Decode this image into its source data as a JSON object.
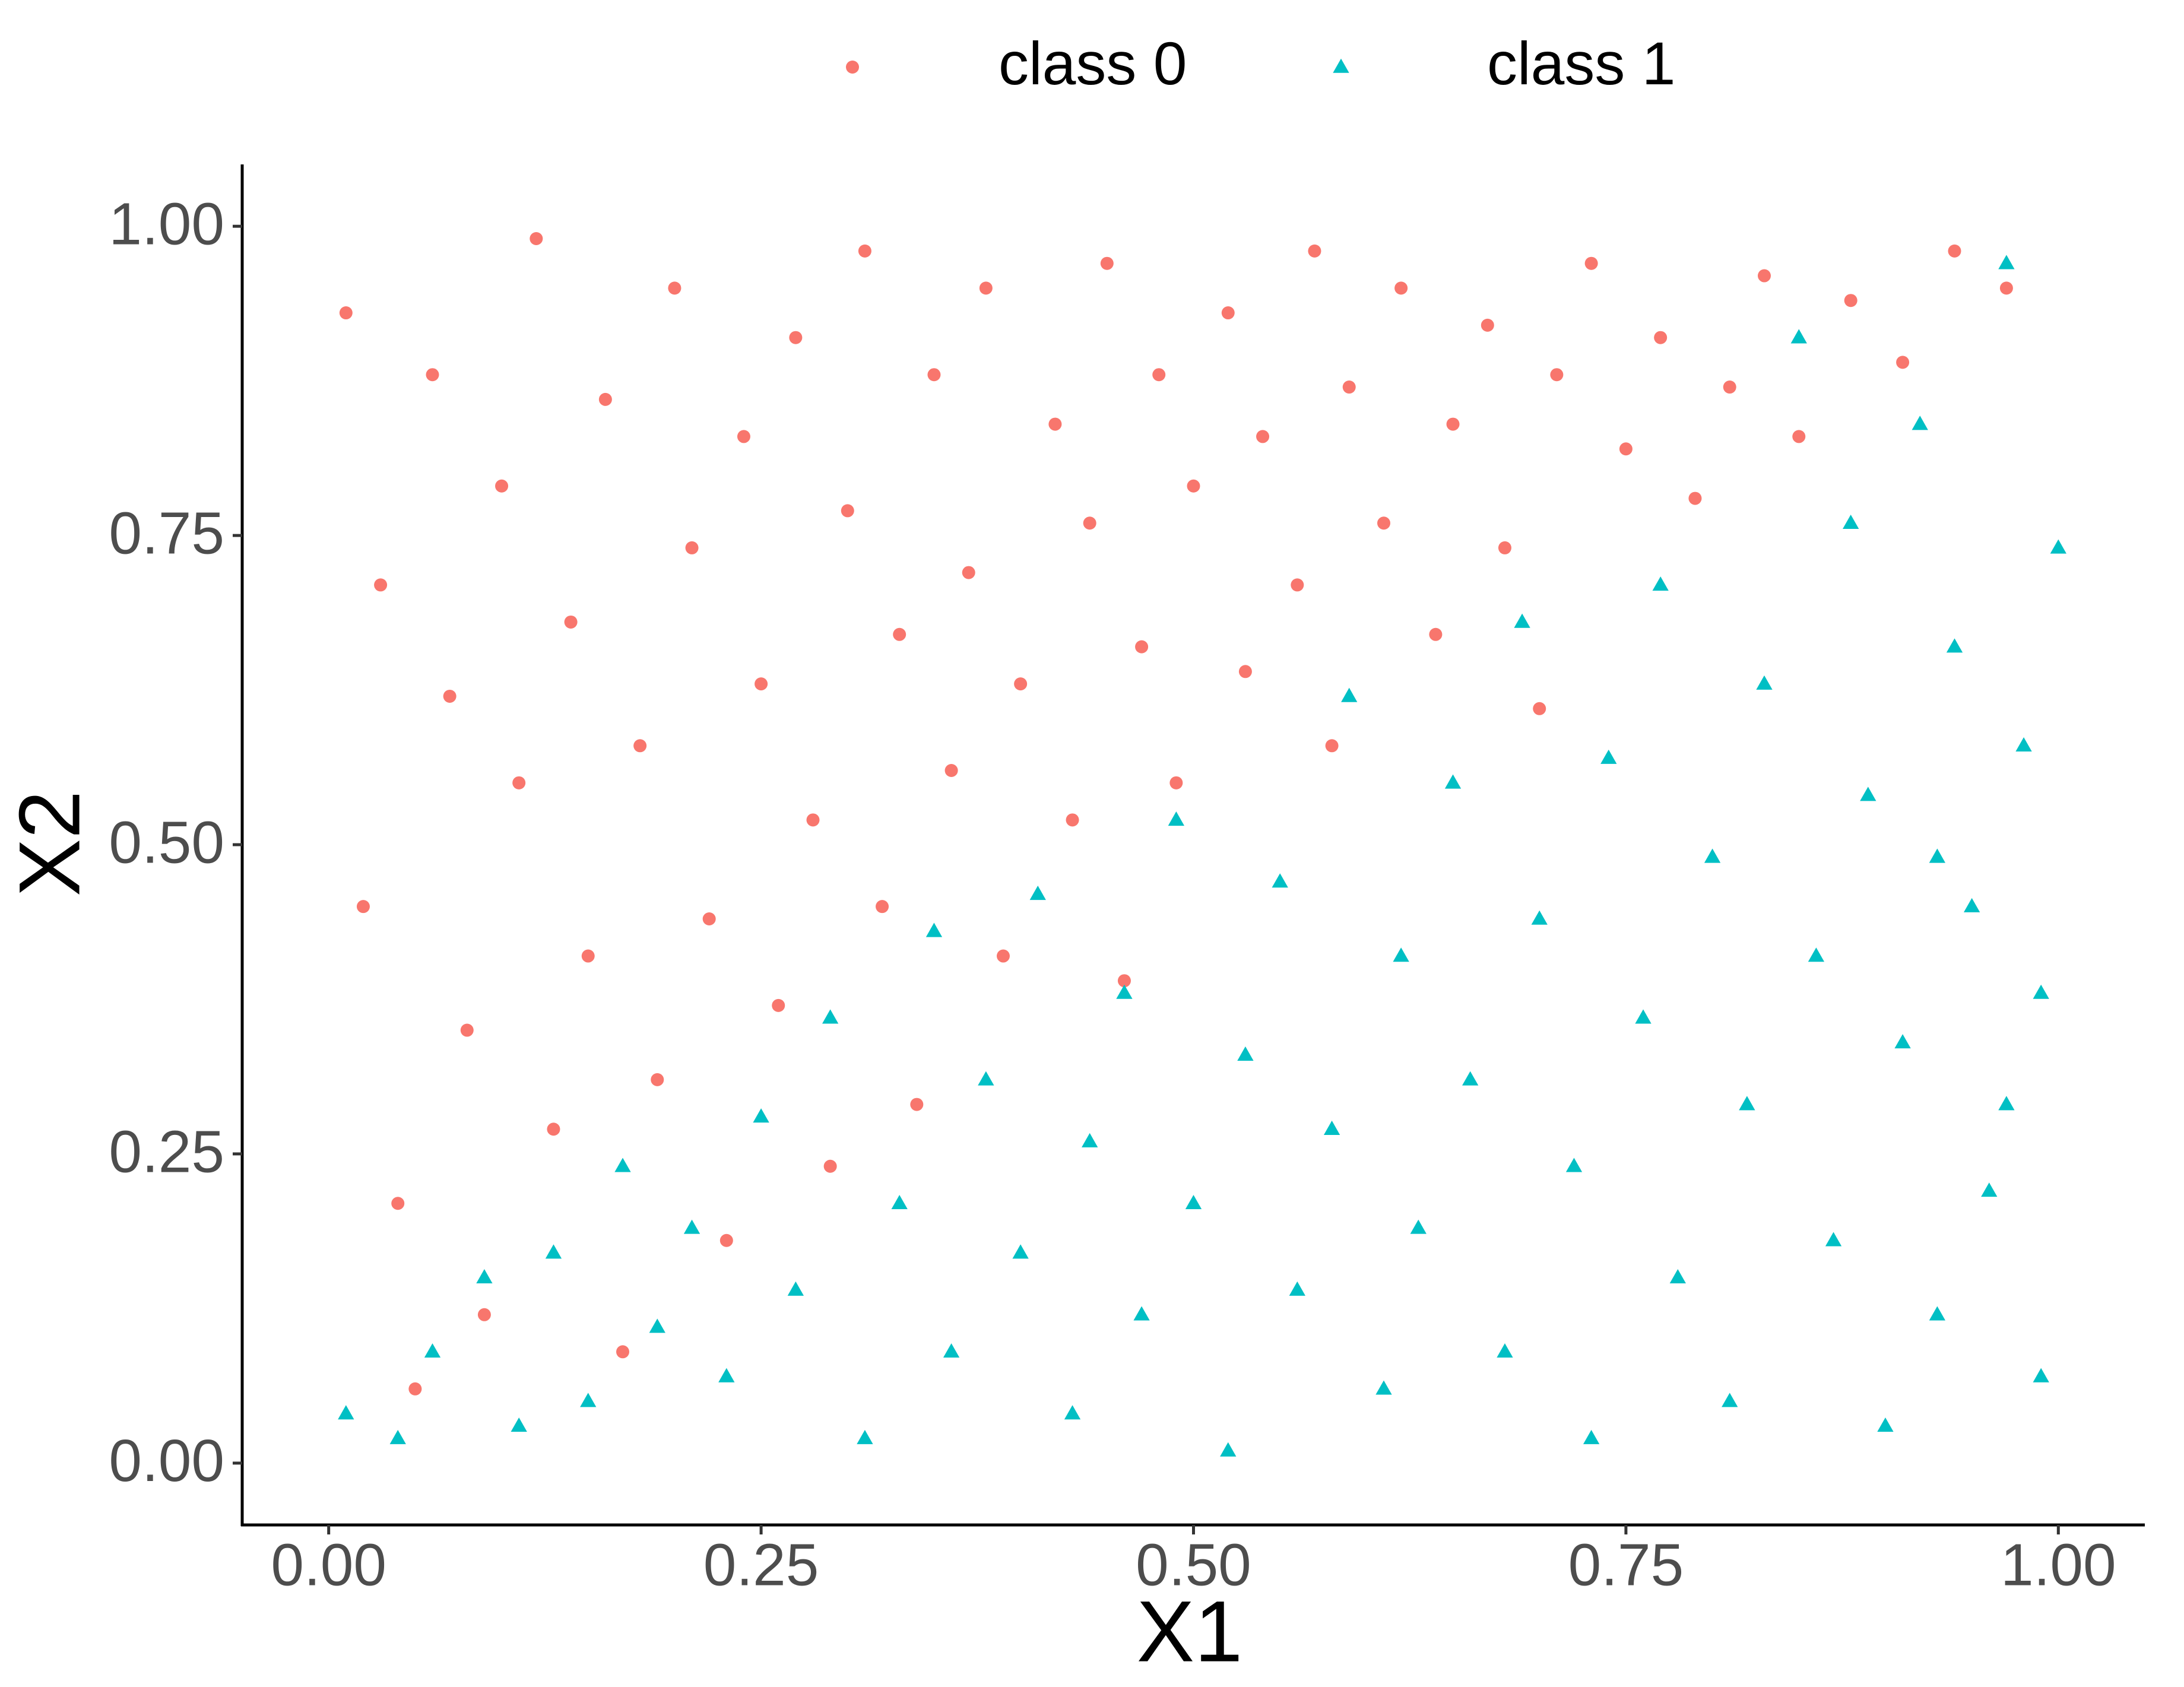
{
  "chart_data": {
    "type": "scatter",
    "xlabel": "X1",
    "ylabel": "X2",
    "xlim": [
      -0.05,
      1.05
    ],
    "ylim": [
      -0.05,
      1.05
    ],
    "xticks": [
      {
        "value": 0,
        "label": "0.00"
      },
      {
        "value": 0.25,
        "label": "0.25"
      },
      {
        "value": 0.5,
        "label": "0.50"
      },
      {
        "value": 0.75,
        "label": "0.75"
      },
      {
        "value": 1,
        "label": "1.00"
      }
    ],
    "yticks": [
      {
        "value": 0,
        "label": "0.00"
      },
      {
        "value": 0.25,
        "label": "0.25"
      },
      {
        "value": 0.5,
        "label": "0.50"
      },
      {
        "value": 0.75,
        "label": "0.75"
      },
      {
        "value": 1,
        "label": "1.00"
      }
    ],
    "grid": false,
    "legend": "top",
    "series": [
      {
        "name": "class 0",
        "color": "#F8766D",
        "shape": "circle",
        "x": [
          0.01,
          0.03,
          0.02,
          0.04,
          0.05,
          0.06,
          0.07,
          0.08,
          0.09,
          0.1,
          0.11,
          0.12,
          0.13,
          0.14,
          0.15,
          0.16,
          0.17,
          0.18,
          0.19,
          0.2,
          0.21,
          0.22,
          0.23,
          0.24,
          0.25,
          0.26,
          0.27,
          0.28,
          0.29,
          0.3,
          0.31,
          0.32,
          0.33,
          0.34,
          0.35,
          0.36,
          0.37,
          0.38,
          0.39,
          0.4,
          0.42,
          0.43,
          0.44,
          0.45,
          0.46,
          0.47,
          0.48,
          0.49,
          0.5,
          0.52,
          0.53,
          0.54,
          0.56,
          0.57,
          0.58,
          0.59,
          0.61,
          0.62,
          0.64,
          0.65,
          0.67,
          0.68,
          0.7,
          0.71,
          0.73,
          0.75,
          0.77,
          0.79,
          0.81,
          0.83,
          0.85,
          0.88,
          0.91,
          0.94,
          0.97
        ],
        "y": [
          0.93,
          0.71,
          0.45,
          0.21,
          0.06,
          0.88,
          0.62,
          0.35,
          0.12,
          0.79,
          0.55,
          0.99,
          0.27,
          0.68,
          0.41,
          0.86,
          0.09,
          0.58,
          0.31,
          0.95,
          0.74,
          0.44,
          0.18,
          0.83,
          0.63,
          0.37,
          0.91,
          0.52,
          0.24,
          0.77,
          0.98,
          0.45,
          0.67,
          0.29,
          0.88,
          0.56,
          0.72,
          0.95,
          0.41,
          0.63,
          0.84,
          0.52,
          0.76,
          0.97,
          0.39,
          0.66,
          0.88,
          0.55,
          0.79,
          0.93,
          0.64,
          0.83,
          0.71,
          0.98,
          0.58,
          0.87,
          0.76,
          0.95,
          0.67,
          0.84,
          0.92,
          0.74,
          0.61,
          0.88,
          0.97,
          0.82,
          0.91,
          0.78,
          0.87,
          0.96,
          0.83,
          0.94,
          0.89,
          0.98,
          0.95
        ]
      },
      {
        "name": "class 1",
        "color": "#00BFC4",
        "shape": "triangle",
        "x": [
          0.01,
          0.04,
          0.06,
          0.09,
          0.11,
          0.13,
          0.15,
          0.17,
          0.19,
          0.21,
          0.23,
          0.25,
          0.27,
          0.29,
          0.31,
          0.33,
          0.35,
          0.36,
          0.38,
          0.4,
          0.41,
          0.43,
          0.44,
          0.46,
          0.47,
          0.49,
          0.5,
          0.52,
          0.53,
          0.55,
          0.56,
          0.58,
          0.59,
          0.61,
          0.62,
          0.63,
          0.65,
          0.66,
          0.68,
          0.69,
          0.7,
          0.72,
          0.73,
          0.74,
          0.76,
          0.77,
          0.78,
          0.8,
          0.81,
          0.82,
          0.83,
          0.85,
          0.86,
          0.87,
          0.88,
          0.89,
          0.9,
          0.91,
          0.92,
          0.93,
          0.94,
          0.95,
          0.96,
          0.97,
          0.98,
          0.99,
          0.99,
          1.0,
          0.97,
          0.93
        ],
        "y": [
          0.04,
          0.02,
          0.09,
          0.15,
          0.03,
          0.17,
          0.05,
          0.24,
          0.11,
          0.19,
          0.07,
          0.28,
          0.14,
          0.36,
          0.02,
          0.21,
          0.43,
          0.09,
          0.31,
          0.17,
          0.46,
          0.04,
          0.26,
          0.38,
          0.12,
          0.52,
          0.21,
          0.01,
          0.33,
          0.47,
          0.14,
          0.27,
          0.62,
          0.06,
          0.41,
          0.19,
          0.55,
          0.31,
          0.09,
          0.68,
          0.44,
          0.24,
          0.02,
          0.57,
          0.36,
          0.71,
          0.15,
          0.49,
          0.05,
          0.29,
          0.63,
          0.91,
          0.41,
          0.18,
          0.76,
          0.54,
          0.03,
          0.34,
          0.84,
          0.12,
          0.66,
          0.45,
          0.22,
          0.97,
          0.58,
          0.07,
          0.38,
          0.74,
          0.29,
          0.49
        ]
      }
    ]
  }
}
